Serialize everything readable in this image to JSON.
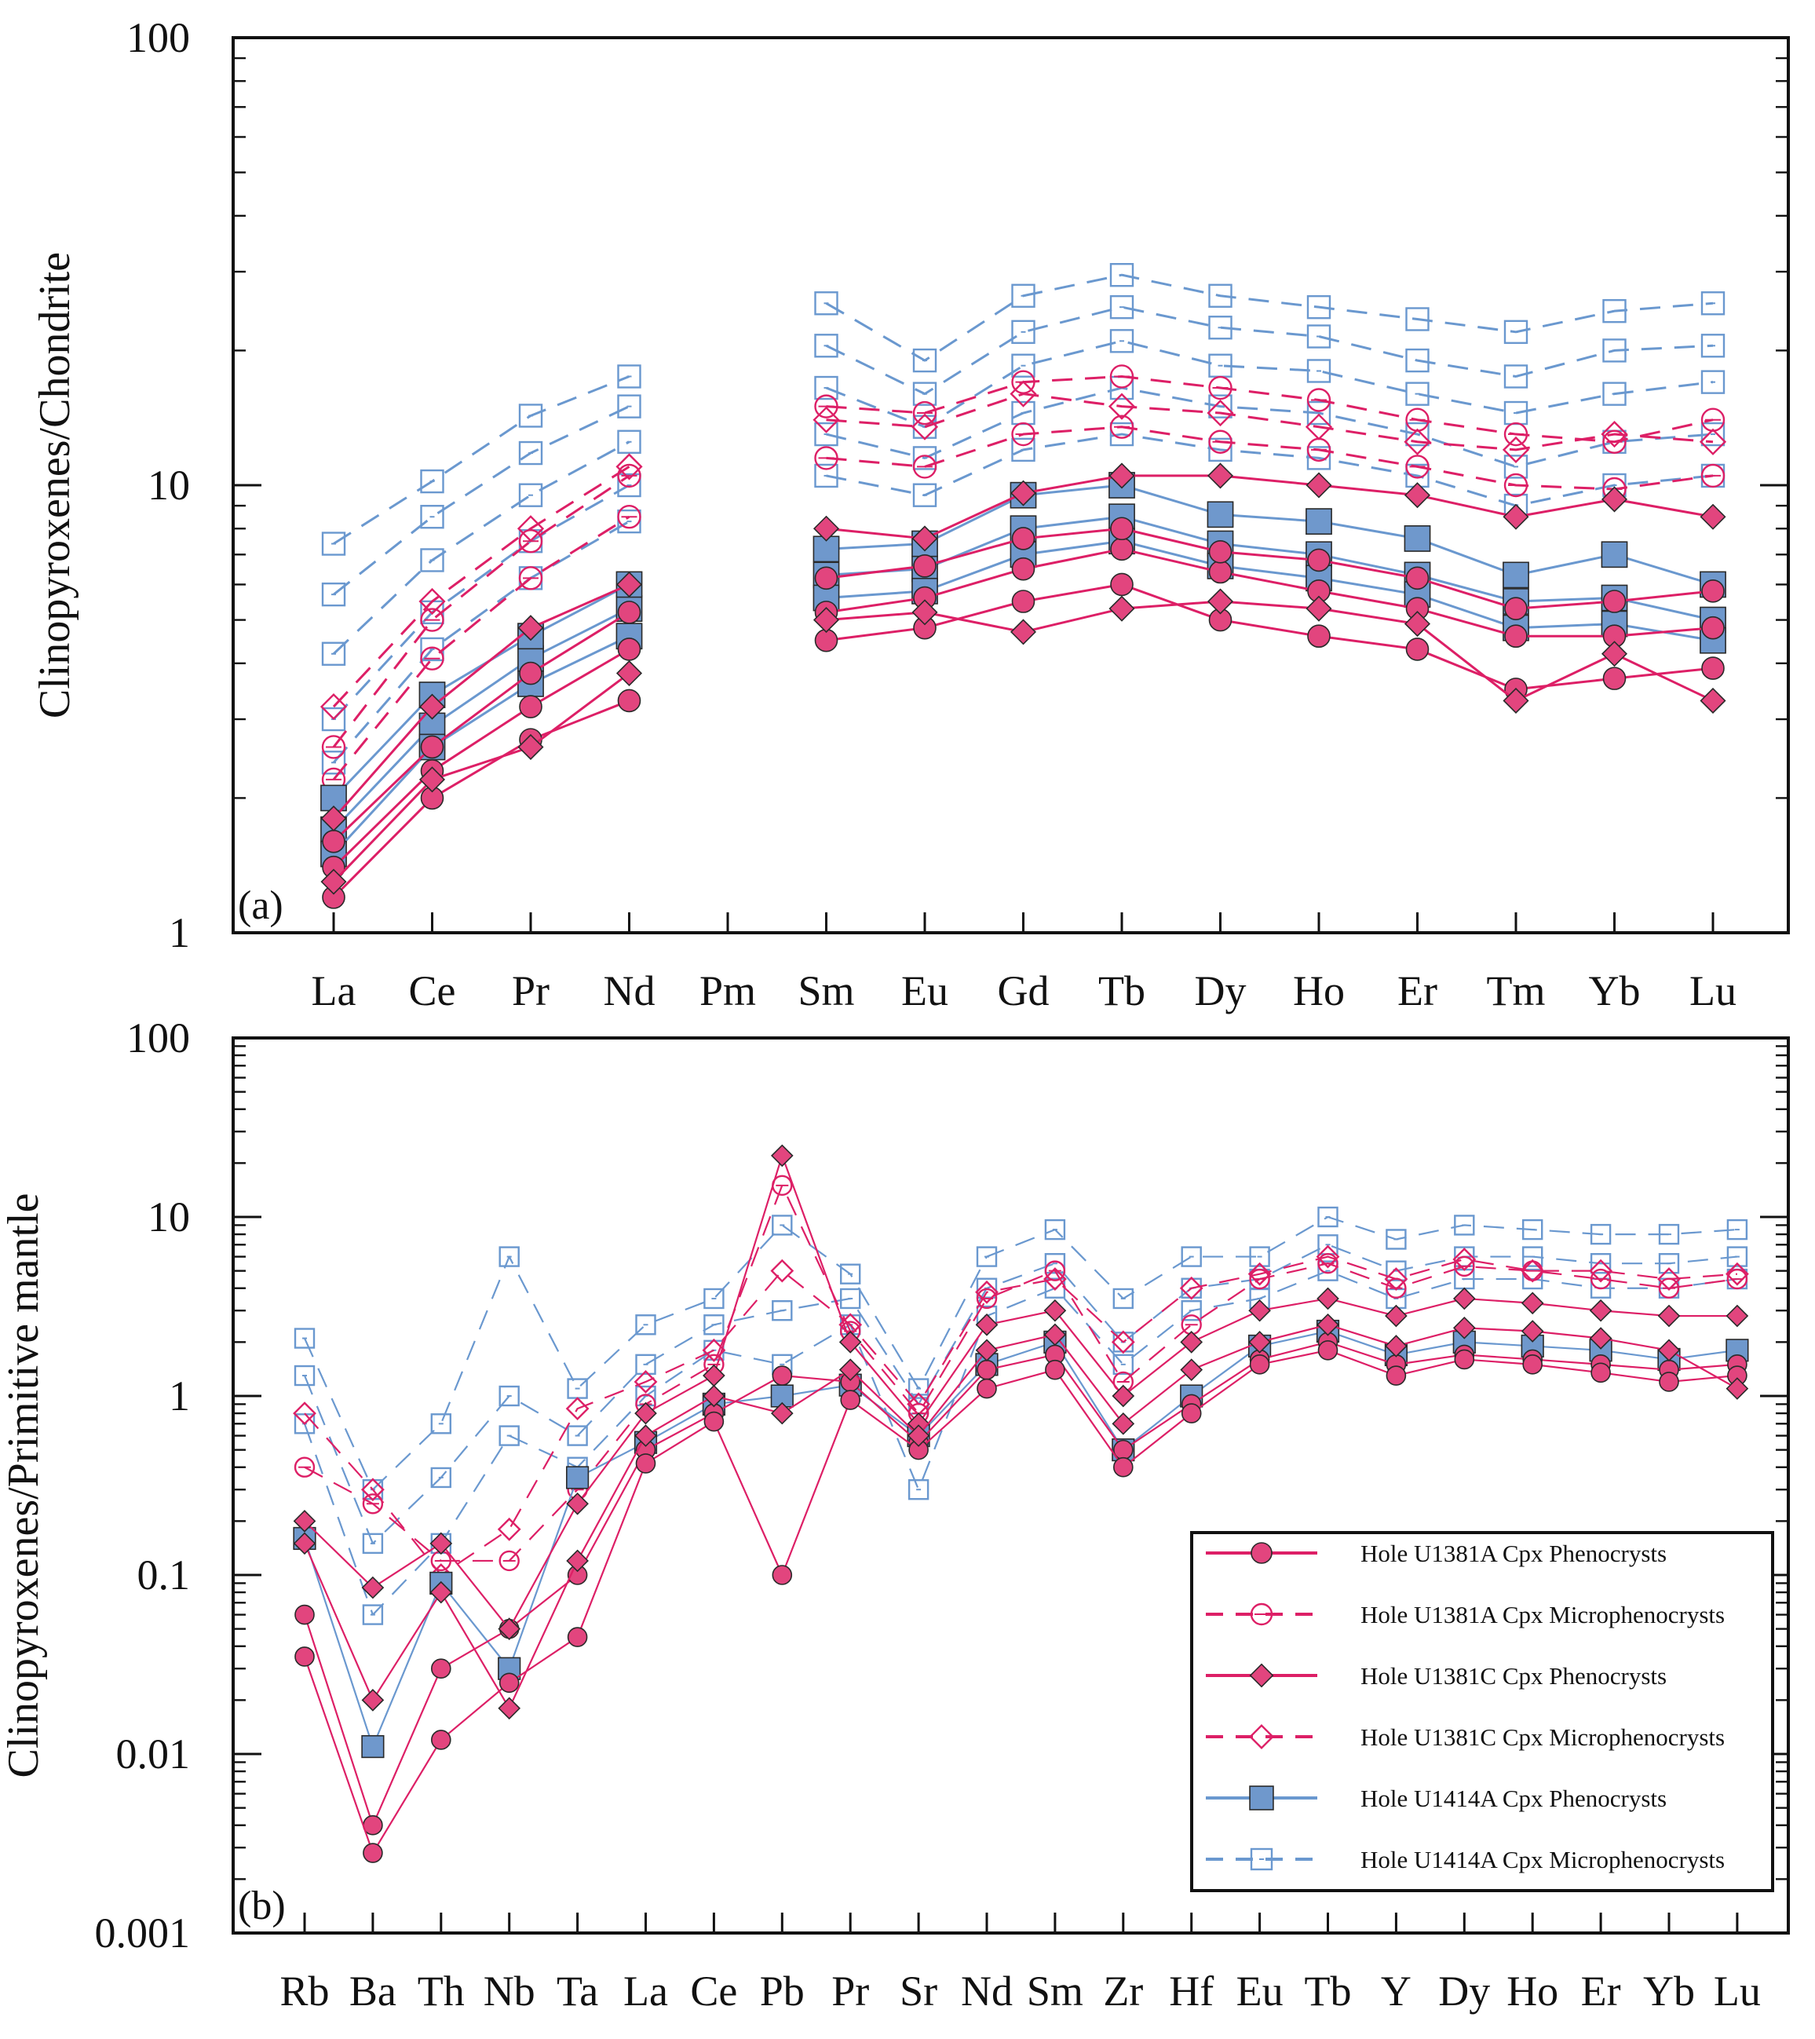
{
  "colors": {
    "red": "#dd1f66",
    "red_fill": "#e2457e",
    "blue": "#6a98cf",
    "blue_fill": "#6f98cc",
    "axis": "#111111"
  },
  "chart_data": [
    {
      "id": "a",
      "type": "line",
      "scale": "log",
      "panel_label": "(a)",
      "ylabel": "Clinopyroxenes/Chondrite",
      "ylim": [
        1,
        100
      ],
      "yticks": [
        "1",
        "10",
        "100"
      ],
      "categories": [
        "La",
        "Ce",
        "Pr",
        "Nd",
        "Pm",
        "Sm",
        "Eu",
        "Gd",
        "Tb",
        "Dy",
        "Ho",
        "Er",
        "Tm",
        "Yb",
        "Lu"
      ],
      "series": [
        {
          "name": "Hole U1381A Cpx Phenocrysts",
          "values": [
            1.4,
            2.3,
            3.2,
            4.3,
            null,
            5.2,
            5.6,
            6.5,
            7.2,
            6.4,
            5.8,
            5.3,
            4.6,
            4.6,
            4.8
          ]
        },
        {
          "name": "Hole U1381A Cpx Phenocrysts",
          "values": [
            1.2,
            2.0,
            2.7,
            3.3,
            null,
            4.5,
            4.8,
            5.5,
            6.0,
            5.0,
            4.6,
            4.3,
            3.5,
            3.7,
            3.9
          ]
        },
        {
          "name": "Hole U1381A Cpx Phenocrysts",
          "values": [
            1.6,
            2.6,
            3.8,
            5.2,
            null,
            6.2,
            6.6,
            7.6,
            8.0,
            7.1,
            6.8,
            6.2,
            5.3,
            5.5,
            5.8
          ]
        },
        {
          "name": "Hole U1381A Cpx Microphenocrysts",
          "values": [
            2.6,
            5.0,
            7.5,
            10.5,
            null,
            15.0,
            14.5,
            17.0,
            17.5,
            16.5,
            15.5,
            14.0,
            13.0,
            12.5,
            14.0
          ]
        },
        {
          "name": "Hole U1381A Cpx Microphenocrysts",
          "values": [
            2.2,
            4.1,
            6.2,
            8.5,
            null,
            11.5,
            11.0,
            13.0,
            13.5,
            12.5,
            12.0,
            11.0,
            10.0,
            9.8,
            10.5
          ]
        },
        {
          "name": "Hole U1381C Cpx Phenocrysts",
          "values": [
            1.3,
            2.2,
            2.6,
            3.8,
            null,
            5.0,
            5.2,
            4.7,
            5.3,
            5.5,
            5.3,
            4.9,
            3.3,
            4.2,
            3.3
          ]
        },
        {
          "name": "Hole U1381C Cpx Phenocrysts",
          "values": [
            1.8,
            3.2,
            4.8,
            6.0,
            null,
            8.0,
            7.6,
            9.6,
            10.5,
            10.5,
            10.0,
            9.5,
            8.5,
            9.3,
            8.5
          ]
        },
        {
          "name": "Hole U1381C Cpx Microphenocrysts",
          "values": [
            3.2,
            5.5,
            8.0,
            11.0,
            null,
            14.0,
            13.5,
            16.0,
            15.0,
            14.5,
            13.5,
            12.5,
            12.0,
            13.0,
            12.5
          ]
        },
        {
          "name": "Hole U1414A Cpx Phenocrysts",
          "values": [
            1.7,
            2.9,
            4.1,
            5.3,
            null,
            6.3,
            6.5,
            8.0,
            8.5,
            7.4,
            7.0,
            6.3,
            5.5,
            5.6,
            5.0
          ]
        },
        {
          "name": "Hole U1414A Cpx Phenocrysts",
          "values": [
            1.5,
            2.6,
            3.6,
            4.6,
            null,
            5.6,
            5.8,
            7.0,
            7.5,
            6.6,
            6.2,
            5.7,
            4.8,
            4.9,
            4.5
          ]
        },
        {
          "name": "Hole U1414A Cpx Phenocrysts",
          "values": [
            2.0,
            3.4,
            4.6,
            6.0,
            null,
            7.2,
            7.4,
            9.5,
            10.0,
            8.6,
            8.3,
            7.6,
            6.3,
            7.0,
            6.0
          ]
        },
        {
          "name": "Hole U1414A Cpx Microphenocrysts",
          "values": [
            7.4,
            10.2,
            14.3,
            17.5,
            null,
            25.5,
            19.0,
            26.5,
            29.5,
            26.5,
            25.0,
            23.5,
            22.0,
            24.5,
            25.5
          ]
        },
        {
          "name": "Hole U1414A Cpx Microphenocrysts",
          "values": [
            5.7,
            8.5,
            11.8,
            15.0,
            null,
            20.5,
            16.0,
            22.0,
            25.0,
            22.5,
            21.5,
            19.0,
            17.5,
            20.0,
            20.5
          ]
        },
        {
          "name": "Hole U1414A Cpx Microphenocrysts",
          "values": [
            4.2,
            6.8,
            9.5,
            12.5,
            null,
            16.5,
            13.5,
            18.5,
            21.0,
            18.5,
            18.0,
            16.0,
            14.5,
            16.0,
            17.0
          ]
        },
        {
          "name": "Hole U1414A Cpx Microphenocrysts",
          "values": [
            3.0,
            5.2,
            7.5,
            10.0,
            null,
            13.0,
            11.5,
            14.5,
            16.5,
            15.0,
            14.5,
            13.0,
            11.0,
            12.5,
            13.0
          ]
        },
        {
          "name": "Hole U1414A Cpx Microphenocrysts",
          "values": [
            2.4,
            4.3,
            6.2,
            8.3,
            null,
            10.5,
            9.5,
            12.0,
            13.0,
            12.0,
            11.5,
            10.5,
            9.0,
            10.0,
            10.5
          ]
        }
      ]
    },
    {
      "id": "b",
      "type": "line",
      "scale": "log",
      "panel_label": "(b)",
      "ylabel": "Clinopyroxenes/Primitive mantle",
      "ylim": [
        0.001,
        100
      ],
      "yticks": [
        "0.001",
        "0.01",
        "0.1",
        "1",
        "10",
        "100"
      ],
      "categories": [
        "Rb",
        "Ba",
        "Th",
        "Nb",
        "Ta",
        "La",
        "Ce",
        "Pb",
        "Pr",
        "Sr",
        "Nd",
        "Sm",
        "Zr",
        "Hf",
        "Eu",
        "Tb",
        "Y",
        "Dy",
        "Ho",
        "Er",
        "Yb",
        "Lu"
      ],
      "series": [
        {
          "name": "Hole U1381A Cpx Phenocrysts",
          "values": [
            0.06,
            0.004,
            0.03,
            0.05,
            0.1,
            0.5,
            0.8,
            1.3,
            1.2,
            0.55,
            1.4,
            1.7,
            0.5,
            0.9,
            1.6,
            2.0,
            1.5,
            1.7,
            1.6,
            1.5,
            1.4,
            1.5
          ]
        },
        {
          "name": "Hole U1381A Cpx Phenocrysts",
          "values": [
            0.035,
            0.0028,
            0.012,
            0.025,
            0.045,
            0.42,
            0.72,
            0.1,
            0.95,
            0.5,
            1.1,
            1.4,
            0.4,
            0.8,
            1.5,
            1.8,
            1.3,
            1.6,
            1.5,
            1.35,
            1.2,
            1.3
          ]
        },
        {
          "name": "Hole U1381A Cpx Microphenocrysts",
          "values": [
            0.4,
            0.25,
            0.12,
            0.12,
            0.3,
            0.9,
            1.5,
            15.0,
            2.3,
            0.8,
            3.5,
            5.0,
            1.2,
            2.5,
            4.5,
            5.5,
            4.0,
            5.3,
            5.0,
            4.5,
            4.0,
            4.5
          ]
        },
        {
          "name": "Hole U1381C Cpx Phenocrysts",
          "values": [
            0.2,
            0.085,
            0.15,
            0.05,
            0.25,
            0.8,
            1.3,
            22.0,
            2.0,
            0.7,
            2.5,
            3.0,
            1.0,
            2.0,
            3.0,
            3.5,
            2.8,
            3.5,
            3.3,
            3.0,
            2.8,
            2.8
          ]
        },
        {
          "name": "Hole U1381C Cpx Phenocrysts",
          "values": [
            0.15,
            0.02,
            0.08,
            0.018,
            0.12,
            0.6,
            1.0,
            0.8,
            1.4,
            0.6,
            1.8,
            2.2,
            0.7,
            1.4,
            2.0,
            2.5,
            1.9,
            2.4,
            2.3,
            2.1,
            1.8,
            1.1
          ]
        },
        {
          "name": "Hole U1381C Cpx Microphenocrysts",
          "values": [
            0.8,
            0.3,
            0.1,
            0.18,
            0.85,
            1.2,
            1.8,
            5.0,
            2.5,
            0.9,
            3.8,
            4.5,
            2.0,
            4.0,
            4.8,
            6.0,
            4.5,
            5.8,
            5.0,
            5.0,
            4.5,
            4.8
          ]
        },
        {
          "name": "Hole U1414A Cpx Phenocrysts",
          "values": [
            0.16,
            0.011,
            0.09,
            0.03,
            0.35,
            0.55,
            0.9,
            1.0,
            1.15,
            0.6,
            1.5,
            2.0,
            0.5,
            1.0,
            1.9,
            2.3,
            1.7,
            2.0,
            1.9,
            1.8,
            1.6,
            1.8
          ]
        },
        {
          "name": "Hole U1414A Cpx Microphenocrysts",
          "values": [
            2.1,
            0.3,
            0.7,
            6.0,
            1.1,
            2.5,
            3.5,
            9.0,
            4.8,
            1.1,
            6.0,
            8.5,
            3.5,
            6.0,
            6.0,
            10.0,
            7.5,
            9.0,
            8.5,
            8.0,
            8.0,
            8.5
          ]
        },
        {
          "name": "Hole U1414A Cpx Microphenocrysts",
          "values": [
            1.3,
            0.15,
            0.35,
            1.0,
            0.6,
            1.5,
            2.5,
            3.0,
            3.5,
            0.9,
            4.0,
            5.5,
            2.0,
            4.0,
            4.5,
            7.0,
            5.0,
            6.0,
            6.0,
            5.5,
            5.5,
            6.0
          ]
        },
        {
          "name": "Hole U1414A Cpx Microphenocrysts",
          "values": [
            0.7,
            0.06,
            0.15,
            0.6,
            0.4,
            1.0,
            1.8,
            1.5,
            2.5,
            0.3,
            2.8,
            4.0,
            1.5,
            3.0,
            3.5,
            5.0,
            3.5,
            4.5,
            4.5,
            4.0,
            4.0,
            4.5
          ]
        }
      ]
    }
  ],
  "legend": {
    "items": [
      {
        "label": "Hole U1381A Cpx Phenocrysts",
        "color": "red",
        "dash": false,
        "marker": "circle",
        "filled": true
      },
      {
        "label": "Hole U1381A Cpx Microphenocrysts",
        "color": "red",
        "dash": true,
        "marker": "circle",
        "filled": false
      },
      {
        "label": "Hole U1381C Cpx Phenocrysts",
        "color": "red",
        "dash": false,
        "marker": "diamond",
        "filled": true
      },
      {
        "label": "Hole U1381C Cpx Microphenocrysts",
        "color": "red",
        "dash": true,
        "marker": "diamond",
        "filled": false
      },
      {
        "label": "Hole U1414A Cpx Phenocrysts",
        "color": "blue",
        "dash": false,
        "marker": "square",
        "filled": true
      },
      {
        "label": "Hole U1414A Cpx Microphenocrysts",
        "color": "blue",
        "dash": true,
        "marker": "square",
        "filled": false
      }
    ]
  }
}
